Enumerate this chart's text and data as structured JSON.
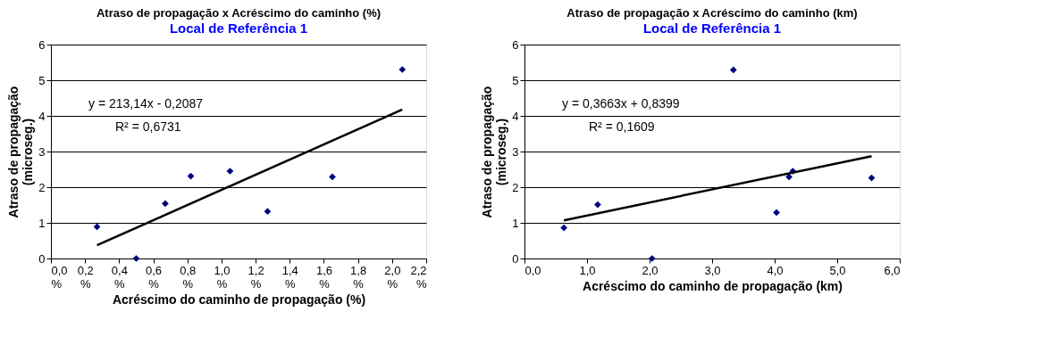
{
  "chart_data": [
    {
      "type": "scatter",
      "title": "Atraso de propagação x Acréscimo do caminho (%)",
      "subtitle": "Local de Referência 1",
      "xlabel": "Acréscimo do caminho de propagação  (%)",
      "ylabel": "Atraso de propagação\n(microseg.)",
      "series": [
        {
          "color": "#000080",
          "marker": "diamond",
          "x": [
            0.27,
            0.5,
            0.67,
            0.82,
            1.05,
            1.27,
            1.65,
            2.06
          ],
          "values": [
            0.89,
            0,
            1.54,
            2.31,
            2.45,
            1.32,
            2.29,
            5.3
          ]
        },
        {
          "type": "line",
          "color": "#000000",
          "x": [
            0.27,
            2.06
          ],
          "values": [
            0.37,
            4.18
          ]
        }
      ],
      "xlim": [
        0,
        2.2
      ],
      "xticks": [
        {
          "value": 0,
          "label": "0,0\n%"
        },
        {
          "value": 0.2,
          "label": "0,2\n%"
        },
        {
          "value": 0.4,
          "label": "0,4\n%"
        },
        {
          "value": 0.6,
          "label": "0,6\n%"
        },
        {
          "value": 0.8,
          "label": "0,8\n%"
        },
        {
          "value": 1.0,
          "label": "1,0\n%"
        },
        {
          "value": 1.2,
          "label": "1,2\n%"
        },
        {
          "value": 1.4,
          "label": "1,4\n%"
        },
        {
          "value": 1.6,
          "label": "1,6\n%"
        },
        {
          "value": 1.8,
          "label": "1,8\n%"
        },
        {
          "value": 2.0,
          "label": "2,0\n%"
        },
        {
          "value": 2.2,
          "label": "2,2\n%"
        }
      ],
      "ylim": [
        0,
        6
      ],
      "yticks": [
        0,
        1,
        2,
        3,
        4,
        5,
        6
      ],
      "grid": "y",
      "annotations": [
        "y = 213,14x - 0,2087",
        "R² = 0,6731"
      ]
    },
    {
      "type": "scatter",
      "title": "Atraso de propagação x Acréscimo do caminho (km)",
      "subtitle": "Local de Referência 1",
      "xlabel": "Acréscimo do caminho de propagação  (km)",
      "ylabel": "Atraso de propagação\n(microseg.)",
      "series": [
        {
          "color": "#000080",
          "marker": "diamond",
          "x": [
            0.63,
            1.17,
            2.04,
            3.34,
            4.03,
            4.23,
            4.29,
            5.55
          ],
          "values": [
            0.86,
            1.51,
            0,
            5.29,
            1.29,
            2.29,
            2.45,
            2.26
          ]
        },
        {
          "type": "line",
          "color": "#000000",
          "x": [
            0.63,
            5.55
          ],
          "values": [
            1.07,
            2.87
          ]
        }
      ],
      "xlim": [
        0,
        6
      ],
      "xticks": [
        {
          "value": 0,
          "label": "0,0"
        },
        {
          "value": 1,
          "label": "1,0"
        },
        {
          "value": 2,
          "label": "2,0"
        },
        {
          "value": 3,
          "label": "3,0"
        },
        {
          "value": 4,
          "label": "4,0"
        },
        {
          "value": 5,
          "label": "5,0"
        },
        {
          "value": 6,
          "label": "6,0"
        }
      ],
      "ylim": [
        0,
        6
      ],
      "yticks": [
        0,
        1,
        2,
        3,
        4,
        5,
        6
      ],
      "grid": "y",
      "annotations": [
        "y = 0,3663x + 0,8399",
        "R² = 0,1609"
      ]
    }
  ]
}
